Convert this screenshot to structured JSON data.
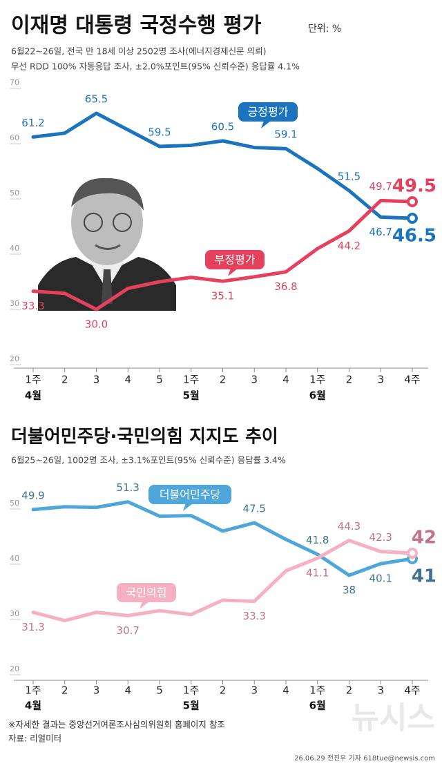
{
  "chart_data": [
    {
      "type": "line",
      "title": "이재명 대통령 국정수행 평가",
      "unit": "단위: %",
      "notes": [
        "6월22~26일, 전국 만 18세 이상 2502명 조사(에너지경제신문 의뢰)",
        "무선 RDD 100% 자동응답 조사, ±2.0%포인트(95% 신뢰수준) 응답률 4.1%"
      ],
      "categories": [
        "1주",
        "2",
        "3",
        "4",
        "5",
        "1주",
        "2",
        "3",
        "4",
        "1주",
        "2",
        "3",
        "4주"
      ],
      "month_labels": [
        "4월",
        null,
        null,
        null,
        null,
        "5월",
        null,
        null,
        null,
        "6월",
        null,
        null,
        null
      ],
      "series": [
        {
          "name": "긍정평가",
          "color": "#1b74bd",
          "label_color": "#1b74bd",
          "values": [
            61.2,
            61.9,
            65.5,
            62.5,
            59.5,
            59.7,
            60.5,
            59.3,
            59.1,
            55.5,
            51.5,
            46.7,
            46.5
          ],
          "value_labels": [
            "61.2",
            null,
            "65.5",
            null,
            "59.5",
            null,
            "60.5",
            null,
            "59.1",
            null,
            "51.5",
            "46.7",
            "46.5"
          ]
        },
        {
          "name": "부정평가",
          "color": "#e6405f",
          "label_color": "#e6405f",
          "values": [
            33.3,
            32.9,
            30.0,
            33.8,
            35.0,
            35.8,
            35.1,
            35.9,
            36.8,
            41.0,
            44.2,
            49.7,
            49.5
          ],
          "value_labels": [
            "33.3",
            null,
            "30.0",
            null,
            null,
            null,
            "35.1",
            null,
            "36.8",
            null,
            "44.2",
            "49.7",
            "49.5"
          ]
        }
      ],
      "ylim": [
        20,
        70
      ],
      "yticks": [
        20,
        30,
        40,
        50,
        60,
        70
      ]
    },
    {
      "type": "line",
      "title": "더불어민주당·국민의힘 지지도 추이",
      "notes": [
        "6월25~26일, 1002명 조사, ±3.1%포인트(95% 신뢰수준) 응답률 3.4%"
      ],
      "categories": [
        "1주",
        "2",
        "3",
        "4",
        "5",
        "1주",
        "2",
        "3",
        "4",
        "1주",
        "2",
        "3",
        "4주"
      ],
      "month_labels": [
        "4월",
        null,
        null,
        null,
        null,
        "5월",
        null,
        null,
        null,
        "6월",
        null,
        null,
        null
      ],
      "series": [
        {
          "name": "더불어민주당",
          "color": "#4ea6d9",
          "label_color": "#3f7293",
          "values": [
            49.9,
            50.4,
            50.3,
            51.3,
            48.7,
            48.8,
            46.0,
            47.5,
            44.5,
            41.8,
            38,
            40.1,
            41
          ],
          "value_labels": [
            "49.9",
            null,
            null,
            "51.3",
            null,
            null,
            null,
            "47.5",
            null,
            "41.8",
            "38",
            "40.1",
            "41"
          ]
        },
        {
          "name": "국민의힘",
          "color": "#f5b0c2",
          "label_color": "#c2728a",
          "values": [
            31.3,
            29.8,
            31.3,
            30.7,
            31.6,
            30.9,
            33.5,
            33.3,
            38.8,
            41.1,
            44.3,
            42.3,
            42
          ],
          "value_labels": [
            "31.3",
            null,
            null,
            "30.7",
            null,
            null,
            null,
            "33.3",
            null,
            "41.1",
            "44.3",
            "42.3",
            "42"
          ]
        }
      ],
      "ylim": [
        20,
        55
      ],
      "yticks": [
        20,
        30,
        40,
        50
      ]
    }
  ],
  "footer": {
    "note": "※자세한 결과는 중앙선거여론조사심의위원회 홈페이지 참조",
    "source": "자료: 리얼미터",
    "credit": "26.06.29 전진우 기자 618tue@newsis.com",
    "logo": "뉴시스"
  }
}
